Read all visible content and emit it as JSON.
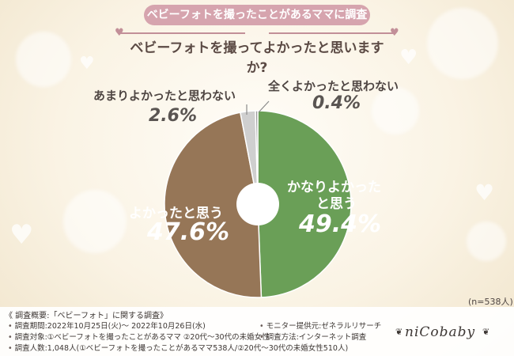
{
  "header": {
    "pill": "ベビーフォトを撮ったことがあるママに調査",
    "question": "ベビーフォトを撮ってよかったと思いますか?"
  },
  "chart_data": {
    "type": "pie",
    "slices": [
      {
        "label": "かなりよかったと思う",
        "value": 49.4,
        "pct": "49.4%",
        "color": "#6a9f57"
      },
      {
        "label": "よかったと思う",
        "value": 47.6,
        "pct": "47.6%",
        "color": "#967657"
      },
      {
        "label": "あまりよかったと思わない",
        "value": 2.6,
        "pct": "2.6%",
        "color": "#cfcfcf"
      },
      {
        "label": "全くよかったと思わない",
        "value": 0.4,
        "pct": "0.4%",
        "color": "#9a9a9a"
      }
    ],
    "label_lines": {
      "kanari_1": "かなりよかった",
      "kanari_2": "と思う"
    },
    "sample": "(n=538人)"
  },
  "footer": {
    "title": "《 調査概要:「ベビーフォト」に関する調査》",
    "period": "調査期間:2022年10月25日(火)～ 2022年10月26日(水)",
    "target": "調査対象:①ベビーフォトを撮ったことがあるママ ②20代～30代の未婚女性",
    "count": "調査人数:1,048人(①ベビーフォトを撮ったことがあるママ538人/②20代～30代の未婚女性510人)",
    "provider": "モニター提供元:ゼネラルリサーチ",
    "method": "調査方法:インターネット調査",
    "logo": "niCobaby"
  }
}
